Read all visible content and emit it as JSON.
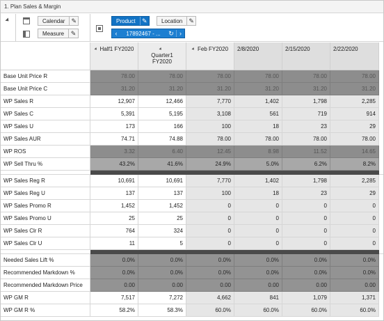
{
  "window": {
    "title": "1. Plan Sales & Margin"
  },
  "pivot": {
    "calendar_label": "Calendar",
    "measure_label": "Measure",
    "product_label": "Product",
    "location_label": "Location",
    "page_value": "17892467 - ...",
    "edit_glyph": "✎",
    "prev_glyph": "‹",
    "next_glyph": "›",
    "reset_glyph": "↻"
  },
  "columns": [
    {
      "label": "Half1 FY2020",
      "kind": "sum"
    },
    {
      "label": "Quarter1 FY2020",
      "kind": "sum"
    },
    {
      "label": "Feb FY2020",
      "kind": "sum"
    },
    {
      "label": "2/8/2020",
      "kind": "week"
    },
    {
      "label": "2/15/2020",
      "kind": "week"
    },
    {
      "label": "2/22/2020",
      "kind": "week"
    }
  ],
  "rows": [
    {
      "label": "Base Unit Price R",
      "style": "dk",
      "values": [
        "78.00",
        "78.00",
        "78.00",
        "78.00",
        "78.00",
        "78.00"
      ]
    },
    {
      "label": "Base Unit Price C",
      "style": "dk",
      "values": [
        "31.20",
        "31.20",
        "31.20",
        "31.20",
        "31.20",
        "31.20"
      ]
    },
    {
      "label": "WP Sales R",
      "style": "in",
      "values": [
        "12,907",
        "12,466",
        "7,770",
        "1,402",
        "1,798",
        "2,285"
      ]
    },
    {
      "label": "WP Sales C",
      "style": "in",
      "values": [
        "5,391",
        "5,195",
        "3,108",
        "561",
        "719",
        "914"
      ]
    },
    {
      "label": "WP Sales U",
      "style": "in",
      "values": [
        "173",
        "166",
        "100",
        "18",
        "23",
        "29"
      ]
    },
    {
      "label": "WP Sales AUR",
      "style": "in",
      "values": [
        "74.71",
        "74.88",
        "78.00",
        "78.00",
        "78.00",
        "78.00"
      ]
    },
    {
      "label": "WP ROS",
      "style": "dk",
      "values": [
        "3.32",
        "6.40",
        "12.45",
        "8.98",
        "11.52",
        "14.65"
      ]
    },
    {
      "label": "WP Sell Thru %",
      "style": "md",
      "values": [
        "43.2%",
        "41.6%",
        "24.9%",
        "5.0%",
        "6.2%",
        "8.2%"
      ]
    },
    {
      "sep": true
    },
    {
      "label": "WP Sales Reg R",
      "style": "in",
      "values": [
        "10,691",
        "10,691",
        "7,770",
        "1,402",
        "1,798",
        "2,285"
      ]
    },
    {
      "label": "WP Sales Reg U",
      "style": "in",
      "values": [
        "137",
        "137",
        "100",
        "18",
        "23",
        "29"
      ]
    },
    {
      "label": "WP Sales Promo R",
      "style": "in",
      "values": [
        "1,452",
        "1,452",
        "0",
        "0",
        "0",
        "0"
      ]
    },
    {
      "label": "WP Sales Promo U",
      "style": "in",
      "values": [
        "25",
        "25",
        "0",
        "0",
        "0",
        "0"
      ]
    },
    {
      "label": "WP Sales Clr R",
      "style": "in",
      "values": [
        "764",
        "324",
        "0",
        "0",
        "0",
        "0"
      ]
    },
    {
      "label": "WP Sales Clr U",
      "style": "in",
      "values": [
        "11",
        "5",
        "0",
        "0",
        "0",
        "0"
      ]
    },
    {
      "sep": true
    },
    {
      "label": "Needed Sales Lift %",
      "style": "dk2",
      "values": [
        "0.0%",
        "0.0%",
        "0.0%",
        "0.0%",
        "0.0%",
        "0.0%"
      ]
    },
    {
      "label": "Recommended Markdown %",
      "style": "dk2",
      "values": [
        "0.0%",
        "0.0%",
        "0.0%",
        "0.0%",
        "0.0%",
        "0.0%"
      ]
    },
    {
      "label": "Recommended Markdown Price",
      "style": "dk2",
      "values": [
        "0.00",
        "0.00",
        "0.00",
        "0.00",
        "0.00",
        "0.00"
      ]
    },
    {
      "label": "WP GM R",
      "style": "in",
      "values": [
        "7,517",
        "7,272",
        "4,662",
        "841",
        "1,079",
        "1,371"
      ]
    },
    {
      "label": "WP GM R %",
      "style": "in",
      "values": [
        "58.2%",
        "58.3%",
        "60.0%",
        "60.0%",
        "60.0%",
        "60.0%"
      ]
    }
  ]
}
